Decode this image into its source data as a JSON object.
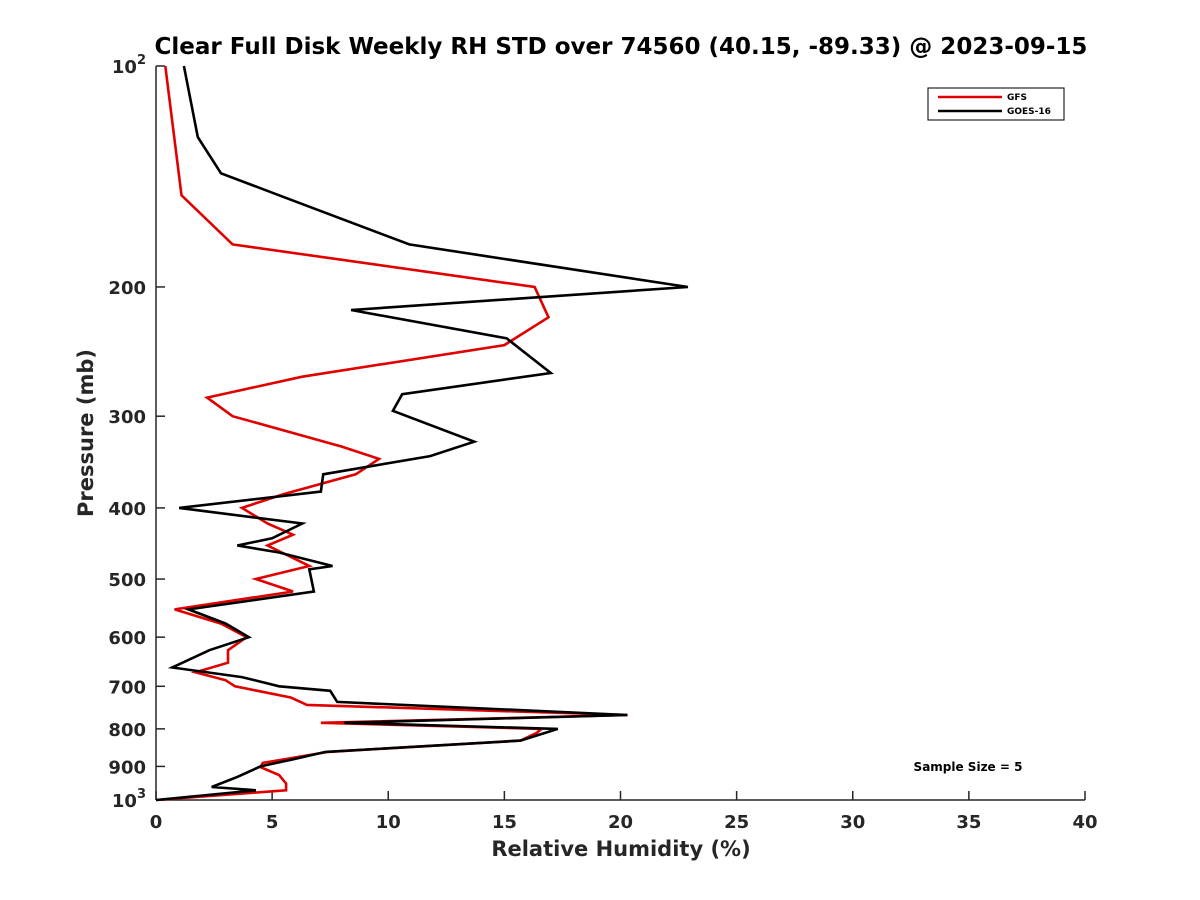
{
  "chart_data": {
    "type": "line",
    "title": "Clear Full Disk Weekly RH STD over 74560 (40.15, -89.33) @ 2023-09-15",
    "xlabel": "Relative Humidity (%)",
    "ylabel": "Pressure (mb)",
    "xlim": [
      0,
      40
    ],
    "ylim": [
      100,
      1000
    ],
    "y_scale": "log",
    "y_reversed": true,
    "x_ticks": [
      "0",
      "5",
      "10",
      "15",
      "20",
      "25",
      "30",
      "35",
      "40"
    ],
    "y_ticks": [
      {
        "value": 100,
        "base": "10",
        "exp": "2"
      },
      {
        "value": 200,
        "label": "200"
      },
      {
        "value": 300,
        "label": "300"
      },
      {
        "value": 400,
        "label": "400"
      },
      {
        "value": 500,
        "label": "500"
      },
      {
        "value": 600,
        "label": "600"
      },
      {
        "value": 700,
        "label": "700"
      },
      {
        "value": 800,
        "label": "800"
      },
      {
        "value": 900,
        "label": "900"
      },
      {
        "value": 1000,
        "base": "10",
        "exp": "3"
      }
    ],
    "grid": false,
    "legend_position": "top-right",
    "annotation": "Sample Size = 5",
    "series": [
      {
        "name": "GFS",
        "color": "#e00000",
        "points": [
          [
            0.4,
            100
          ],
          [
            1.1,
            150
          ],
          [
            3.3,
            175
          ],
          [
            16.3,
            200
          ],
          [
            16.9,
            220
          ],
          [
            15.0,
            240
          ],
          [
            6.3,
            265
          ],
          [
            2.2,
            283
          ],
          [
            3.3,
            300
          ],
          [
            8.0,
            330
          ],
          [
            9.6,
            343
          ],
          [
            8.6,
            360
          ],
          [
            5.5,
            383
          ],
          [
            3.7,
            400
          ],
          [
            4.8,
            420
          ],
          [
            5.9,
            435
          ],
          [
            4.8,
            450
          ],
          [
            6.6,
            480
          ],
          [
            4.3,
            500
          ],
          [
            5.9,
            520
          ],
          [
            0.8,
            550
          ],
          [
            2.8,
            575
          ],
          [
            3.9,
            600
          ],
          [
            3.1,
            625
          ],
          [
            3.1,
            650
          ],
          [
            1.7,
            670
          ],
          [
            3.0,
            687
          ],
          [
            3.4,
            700
          ],
          [
            5.8,
            725
          ],
          [
            6.5,
            742
          ],
          [
            20.3,
            766
          ],
          [
            7.1,
            785
          ],
          [
            16.6,
            800
          ],
          [
            16.4,
            810
          ],
          [
            15.7,
            830
          ],
          [
            7.4,
            860
          ],
          [
            4.6,
            890
          ],
          [
            4.5,
            902
          ],
          [
            5.3,
            925
          ],
          [
            5.6,
            950
          ],
          [
            5.6,
            970
          ],
          [
            0,
            1000
          ]
        ]
      },
      {
        "name": "GOES-16",
        "color": "#000000",
        "points": [
          [
            1.2,
            100
          ],
          [
            1.8,
            125
          ],
          [
            2.8,
            140
          ],
          [
            5.3,
            150
          ],
          [
            10.9,
            175
          ],
          [
            22.9,
            200
          ],
          [
            8.4,
            215
          ],
          [
            15.1,
            235
          ],
          [
            17.0,
            262
          ],
          [
            10.6,
            280
          ],
          [
            10.2,
            295
          ],
          [
            13.7,
            325
          ],
          [
            11.8,
            340
          ],
          [
            7.2,
            360
          ],
          [
            7.1,
            380
          ],
          [
            1.0,
            400
          ],
          [
            6.3,
            420
          ],
          [
            5.0,
            440
          ],
          [
            3.5,
            450
          ],
          [
            5.3,
            460
          ],
          [
            7.6,
            480
          ],
          [
            6.6,
            485
          ],
          [
            6.8,
            520
          ],
          [
            1.4,
            550
          ],
          [
            3.0,
            575
          ],
          [
            4.0,
            600
          ],
          [
            2.3,
            625
          ],
          [
            0.7,
            660
          ],
          [
            3.7,
            680
          ],
          [
            5.3,
            700
          ],
          [
            7.5,
            710
          ],
          [
            7.8,
            735
          ],
          [
            20.3,
            766
          ],
          [
            8.1,
            785
          ],
          [
            17.3,
            800
          ],
          [
            15.7,
            830
          ],
          [
            7.3,
            860
          ],
          [
            5.9,
            880
          ],
          [
            4.5,
            900
          ],
          [
            3.5,
            930
          ],
          [
            2.4,
            960
          ],
          [
            4.3,
            970
          ],
          [
            0,
            1000
          ]
        ]
      }
    ]
  }
}
